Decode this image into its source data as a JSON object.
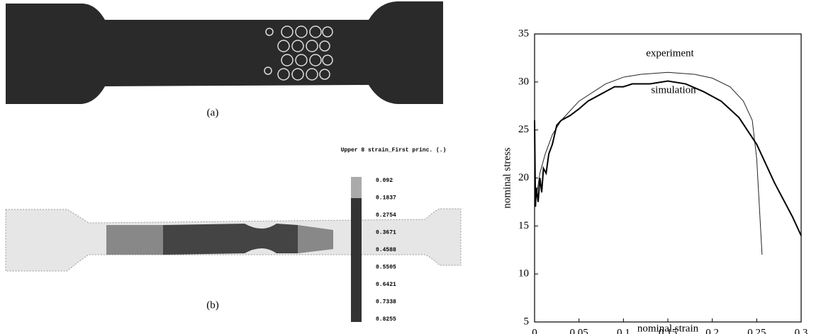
{
  "figure": {
    "panel_a_label": "(a)",
    "panel_b_label": "(b)",
    "colorbar": {
      "title": "Upper 8 strain_First princ. (.)",
      "labels": [
        "0.092",
        "0.1837",
        "0.2754",
        "0.3671",
        "0.4588",
        "0.5505",
        "0.6421",
        "0.7338",
        "0.8255"
      ]
    }
  },
  "chart_data": {
    "type": "line",
    "xlabel": "nominal strain",
    "ylabel": "nominal stress",
    "xlim": [
      0,
      0.3
    ],
    "ylim": [
      5,
      35
    ],
    "xticks": [
      0,
      0.05,
      0.1,
      0.15,
      0.2,
      0.25,
      0.3
    ],
    "yticks": [
      5,
      10,
      15,
      20,
      25,
      30,
      35
    ],
    "annotations": [
      "experiment",
      "simulation"
    ],
    "series": [
      {
        "name": "experiment",
        "color": "#222222",
        "width": 1,
        "x": [
          0.002,
          0.006,
          0.012,
          0.02,
          0.03,
          0.05,
          0.08,
          0.1,
          0.12,
          0.15,
          0.18,
          0.2,
          0.22,
          0.235,
          0.245,
          0.25,
          0.253,
          0.256
        ],
        "values": [
          18,
          20.5,
          22.5,
          24.5,
          26,
          28,
          29.8,
          30.5,
          30.8,
          31,
          30.8,
          30.4,
          29.5,
          28,
          26,
          22,
          17,
          12
        ]
      },
      {
        "name": "simulation",
        "color": "#000000",
        "width": 2,
        "x": [
          0,
          0.001,
          0.002,
          0.004,
          0.006,
          0.008,
          0.01,
          0.013,
          0.016,
          0.02,
          0.025,
          0.03,
          0.04,
          0.05,
          0.06,
          0.07,
          0.08,
          0.09,
          0.1,
          0.11,
          0.13,
          0.15,
          0.17,
          0.19,
          0.21,
          0.23,
          0.25,
          0.27,
          0.29,
          0.3
        ],
        "values": [
          26,
          17,
          19,
          17.5,
          20,
          18.5,
          21,
          20.5,
          22.5,
          23.5,
          25.5,
          26,
          26.5,
          27.2,
          28,
          28.5,
          29,
          29.5,
          29.5,
          29.8,
          29.8,
          30.1,
          29.8,
          29,
          28,
          26.3,
          23.5,
          19.5,
          16,
          14
        ]
      }
    ]
  }
}
